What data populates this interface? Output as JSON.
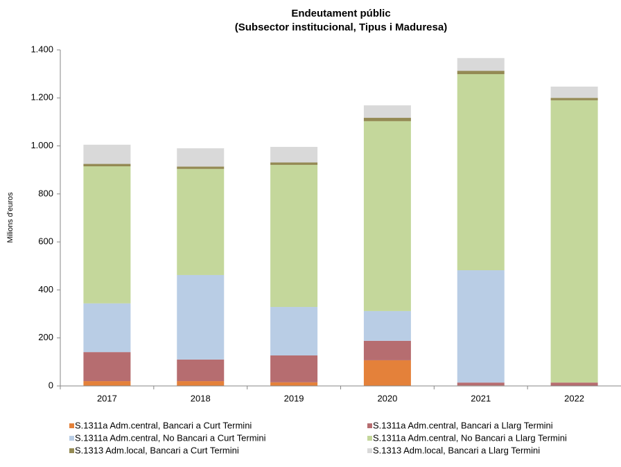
{
  "chart_data": {
    "type": "stacked_bar",
    "title": "Endeutament públic",
    "subtitle": "(Subsector institucional, Tipus i Maduresa)",
    "y_label": "Milions d'euros",
    "categories": [
      "2017",
      "2018",
      "2019",
      "2020",
      "2021",
      "2022"
    ],
    "series": [
      {
        "name": "S.1311a Adm.central, Bancari a Curt Termini",
        "color": "#e4813a",
        "values": [
          20,
          20,
          15,
          107,
          2,
          0
        ]
      },
      {
        "name": "S.1311a Adm.central, Bancari a Llarg Termini",
        "color": "#b66d70",
        "values": [
          121,
          90,
          112,
          81,
          12,
          14
        ]
      },
      {
        "name": "S.1311a Adm.central, No Bancari a Curt Termini",
        "color": "#b9cde5",
        "values": [
          203,
          352,
          202,
          124,
          468,
          0
        ]
      },
      {
        "name": "S.1311a Adm.central, No Bancari a Llarg Termini",
        "color": "#c4d79b",
        "values": [
          571,
          442,
          592,
          791,
          817,
          1176
        ]
      },
      {
        "name": "S.1313 Adm.local, Bancari a Curt Termini",
        "color": "#948a54",
        "values": [
          10,
          10,
          10,
          14,
          14,
          10
        ]
      },
      {
        "name": "S.1313 Adm.local, Bancari a Llarg Termini",
        "color": "#d9d9d9",
        "values": [
          80,
          76,
          65,
          52,
          53,
          47
        ]
      }
    ],
    "ylim": [
      0,
      1400
    ],
    "yticks": [
      0,
      200,
      400,
      600,
      800,
      {
        "value": 1000,
        "label": "1.000"
      },
      {
        "value": 1200,
        "label": "1.200"
      },
      {
        "value": 1400,
        "label": "1.400"
      }
    ],
    "legend": "bottom"
  }
}
